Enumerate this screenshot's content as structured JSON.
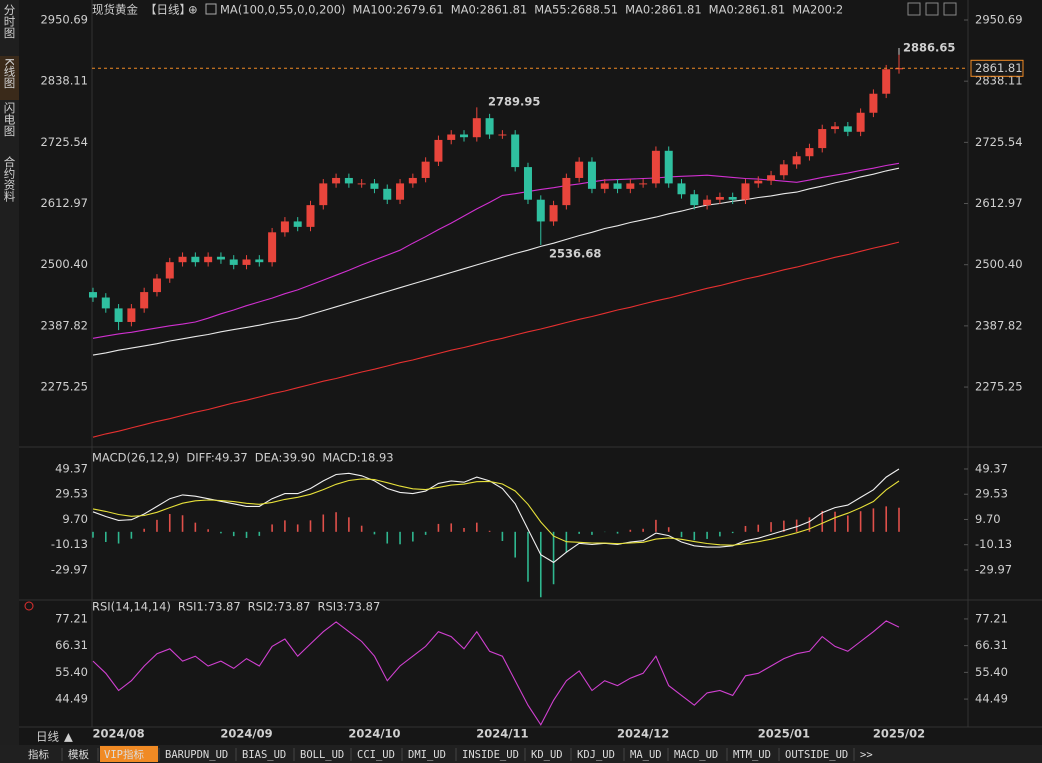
{
  "sidebar": [
    "分时图",
    "K线图",
    "闪电图",
    "合约资料"
  ],
  "header": {
    "title_items": [
      {
        "text": "现货黄金",
        "color": "#e6e6e6"
      },
      {
        "text": "【日线】",
        "color": "#f08a24"
      }
    ],
    "ma_items": [
      {
        "text": "MA(100,0,55,0,0,200)",
        "color": "#e6e6e6"
      },
      {
        "text": "MA100:2679.61",
        "color": "#e6e6e6"
      },
      {
        "text": "MA0:2861.81",
        "color": "#e8d83a"
      },
      {
        "text": "MA55:2688.51",
        "color": "#d040d0"
      },
      {
        "text": "MA0:2861.81",
        "color": "#30c040"
      },
      {
        "text": "MA0:2861.81",
        "color": "#9a9a9a"
      },
      {
        "text": "MA200:2",
        "color": "#e03030"
      }
    ]
  },
  "annotations": {
    "high_recent": "2886.65",
    "high_prior": "2789.95",
    "low_prior": "2536.68"
  },
  "bottom_bar": {
    "timeframe": "日线",
    "tabs": [
      "指标",
      "模板",
      "VIP指标",
      "BARUPDN_UD",
      "BIAS_UD",
      "BOLL_UD",
      "CCI_UD",
      "DMI_UD",
      "INSIDE_UD",
      "KD_UD",
      "KDJ_UD",
      "MA_UD",
      "MACD_UD",
      "MTM_UD",
      "OUTSIDE_UD",
      ">>"
    ],
    "active_tab": 2
  },
  "chart_data": [
    {
      "type": "candlestick",
      "categories": [
        null,
        null,
        "2024/08",
        null,
        null,
        null,
        null,
        null,
        null,
        null,
        null,
        null,
        "2024/09",
        null,
        null,
        null,
        null,
        null,
        null,
        null,
        null,
        null,
        "2024/10",
        null,
        null,
        null,
        null,
        null,
        null,
        null,
        null,
        null,
        "2024/11",
        null,
        null,
        null,
        null,
        null,
        null,
        null,
        null,
        null,
        null,
        "2024/12",
        null,
        null,
        null,
        null,
        null,
        null,
        null,
        null,
        null,
        null,
        "2025/01",
        null,
        null,
        null,
        null,
        null,
        null,
        null,
        null,
        "2025/02"
      ],
      "open": [
        2450,
        2440,
        2420,
        2395,
        2420,
        2450,
        2475,
        2505,
        2515,
        2505,
        2515,
        2510,
        2500,
        2510,
        2505,
        2560,
        2580,
        2570,
        2610,
        2650,
        2660,
        2650,
        2650,
        2640,
        2620,
        2650,
        2660,
        2690,
        2730,
        2740,
        2735,
        2770,
        2740,
        2740,
        2680,
        2620,
        2580,
        2610,
        2660,
        2690,
        2640,
        2650,
        2640,
        2650,
        2650,
        2710,
        2650,
        2630,
        2610,
        2620,
        2625,
        2620,
        2650,
        2655,
        2665,
        2685,
        2700,
        2715,
        2750,
        2755,
        2745,
        2780,
        2815,
        2860
      ],
      "high": [
        2458,
        2448,
        2428,
        2428,
        2458,
        2483,
        2513,
        2523,
        2523,
        2523,
        2523,
        2518,
        2518,
        2518,
        2568,
        2588,
        2588,
        2618,
        2658,
        2668,
        2668,
        2658,
        2658,
        2648,
        2658,
        2668,
        2698,
        2738,
        2748,
        2748,
        2789.95,
        2778,
        2748,
        2748,
        2688,
        2628,
        2618,
        2668,
        2698,
        2698,
        2658,
        2658,
        2658,
        2658,
        2718,
        2718,
        2658,
        2638,
        2628,
        2633,
        2633,
        2658,
        2663,
        2673,
        2693,
        2708,
        2723,
        2758,
        2763,
        2763,
        2788,
        2823,
        2868,
        2886.65
      ],
      "low": [
        2432,
        2412,
        2380,
        2387,
        2412,
        2442,
        2467,
        2497,
        2497,
        2497,
        2502,
        2492,
        2492,
        2497,
        2497,
        2552,
        2562,
        2562,
        2602,
        2642,
        2642,
        2642,
        2632,
        2612,
        2612,
        2642,
        2652,
        2682,
        2722,
        2727,
        2727,
        2732,
        2732,
        2672,
        2612,
        2536.68,
        2572,
        2602,
        2652,
        2632,
        2632,
        2632,
        2632,
        2642,
        2642,
        2642,
        2622,
        2602,
        2602,
        2612,
        2612,
        2612,
        2642,
        2647,
        2657,
        2677,
        2692,
        2707,
        2742,
        2737,
        2737,
        2772,
        2807,
        2852
      ],
      "close": [
        2440,
        2420,
        2395,
        2420,
        2450,
        2475,
        2505,
        2515,
        2505,
        2515,
        2510,
        2500,
        2510,
        2505,
        2560,
        2580,
        2570,
        2610,
        2650,
        2660,
        2650,
        2650,
        2640,
        2620,
        2650,
        2660,
        2690,
        2730,
        2740,
        2735,
        2770,
        2740,
        2740,
        2680,
        2620,
        2580,
        2610,
        2660,
        2690,
        2640,
        2650,
        2640,
        2650,
        2650,
        2710,
        2650,
        2630,
        2610,
        2620,
        2625,
        2620,
        2650,
        2655,
        2665,
        2685,
        2700,
        2715,
        2750,
        2755,
        2745,
        2780,
        2815,
        2860,
        2862
      ],
      "up_color": "#e8453c",
      "down_color": "#2fc0a0",
      "series": [
        {
          "color": "#e8e8e8",
          "values": [
            2334,
            2338,
            2343,
            2347,
            2351,
            2355,
            2360,
            2364,
            2368,
            2372,
            2377,
            2381,
            2385,
            2389,
            2394,
            2398,
            2402,
            2409,
            2416,
            2423,
            2430,
            2437,
            2444,
            2451,
            2458,
            2465,
            2472,
            2479,
            2486,
            2493,
            2500,
            2507,
            2514,
            2521,
            2527,
            2534,
            2540,
            2547,
            2554,
            2560,
            2567,
            2572,
            2578,
            2583,
            2588,
            2594,
            2599,
            2605,
            2610,
            2613,
            2617,
            2620,
            2624,
            2627,
            2631,
            2634,
            2640,
            2645,
            2651,
            2656,
            2662,
            2667,
            2673,
            2678
          ]
        },
        {
          "color": "#d030d0",
          "values": [
            2365,
            2369,
            2373,
            2376,
            2380,
            2384,
            2388,
            2391,
            2395,
            2402,
            2410,
            2417,
            2425,
            2432,
            2439,
            2447,
            2454,
            2463,
            2472,
            2481,
            2490,
            2500,
            2509,
            2518,
            2527,
            2540,
            2552,
            2565,
            2577,
            2590,
            2603,
            2615,
            2628,
            2631,
            2635,
            2639,
            2642,
            2646,
            2649,
            2653,
            2656,
            2657,
            2658,
            2659,
            2660,
            2662,
            2663,
            2664,
            2665,
            2663,
            2661,
            2659,
            2658,
            2656,
            2654,
            2652,
            2656,
            2661,
            2665,
            2669,
            2674,
            2678,
            2683,
            2687
          ]
        },
        {
          "color": "#e53030",
          "values": [
            2183,
            2189,
            2194,
            2200,
            2206,
            2212,
            2217,
            2223,
            2229,
            2234,
            2240,
            2246,
            2251,
            2257,
            2263,
            2268,
            2274,
            2280,
            2286,
            2291,
            2297,
            2303,
            2308,
            2314,
            2320,
            2325,
            2331,
            2337,
            2343,
            2348,
            2354,
            2360,
            2365,
            2371,
            2377,
            2382,
            2388,
            2394,
            2400,
            2405,
            2411,
            2417,
            2422,
            2428,
            2434,
            2439,
            2445,
            2451,
            2457,
            2462,
            2468,
            2474,
            2479,
            2485,
            2491,
            2496,
            2502,
            2508,
            2514,
            2519,
            2525,
            2531,
            2536,
            2542
          ]
        }
      ],
      "last_price": {
        "value": 2861.81,
        "label": "2861.81"
      },
      "last_price_color": "#f08a24",
      "ylim": [
        2168.6,
        2950.69
      ],
      "yticks": [
        2950.69,
        2838.11,
        2725.54,
        2612.97,
        {
          "value": 2500.4,
          "label": "2500.40"
        },
        2387.82,
        2275.25
      ]
    },
    {
      "type": "macd",
      "legend": [
        {
          "text": "MACD(26,12,9)",
          "color": "#e6e6e6"
        },
        {
          "text": "DIFF:49.37",
          "color": "#e6e6e6"
        },
        {
          "text": "DEA:39.90",
          "color": "#e8d83a"
        },
        {
          "text": "MACD:18.93",
          "color": "#d040d0"
        }
      ],
      "series": [
        {
          "color": "#f0f0f0",
          "values": [
            15.7,
            12,
            9,
            9.5,
            14,
            20,
            26,
            29,
            28,
            26,
            24,
            22,
            20,
            20,
            26,
            30,
            30,
            34,
            40,
            45,
            46,
            44,
            40,
            34,
            31,
            30,
            32,
            38,
            40,
            39,
            43,
            40,
            34,
            22,
            2,
            -18,
            -24,
            -16,
            -9,
            -10,
            -9,
            -10,
            -8,
            -7,
            -1,
            -3,
            -8,
            -11,
            -12,
            -12,
            -11,
            -7,
            -5,
            -2,
            1,
            4,
            8,
            15,
            19,
            21,
            27,
            33,
            43,
            49.37
          ]
        },
        {
          "color": "#e6e03a",
          "values": [
            18,
            16,
            13.6,
            12.2,
            12.8,
            15.3,
            19,
            22.5,
            24.4,
            25,
            24.6,
            23.7,
            22.4,
            21.6,
            23.1,
            25.5,
            27.1,
            29.5,
            33.2,
            37.3,
            40.3,
            41.6,
            41,
            38.6,
            35.9,
            33.8,
            33.2,
            34.9,
            36.7,
            37.5,
            39.4,
            39.6,
            37.6,
            32.1,
            21.6,
            7.7,
            -3.4,
            -7.8,
            -8.2,
            -8.8,
            -8.9,
            -9.3,
            -8.8,
            -8.2,
            -5.7,
            -4.8,
            -5.9,
            -7.7,
            -9.2,
            -10.2,
            -10.5,
            -9.3,
            -7.8,
            -5.8,
            -3.4,
            -0.8,
            2.3,
            6.8,
            11.1,
            14.6,
            18.9,
            23.8,
            33,
            39.9
          ]
        }
      ],
      "histogram": {
        "up_color": "#e0504a",
        "down_color": "#2fb890",
        "values": [
          -4.6,
          -8,
          -9.2,
          -5.4,
          2.4,
          9.4,
          14,
          13,
          7.2,
          2,
          -1.2,
          -3.4,
          -4.8,
          -3.2,
          5.8,
          9,
          5.8,
          9,
          13.6,
          15.4,
          11.4,
          4.8,
          -2,
          -9.2,
          -9.8,
          -7.6,
          -2.4,
          6.2,
          6.6,
          3,
          7.2,
          0.8,
          -7.2,
          -20.2,
          -39.2,
          -51.4,
          -41.2,
          -16.4,
          -1.6,
          -2.4,
          -0.2,
          -1.4,
          1.6,
          2.4,
          9.4,
          3.6,
          -4.2,
          -6.6,
          -5.6,
          -3.6,
          -1,
          4.6,
          5.6,
          7.6,
          8.8,
          9.6,
          11.4,
          16.4,
          15.8,
          12.8,
          16.2,
          18.4,
          20,
          18.93
        ]
      },
      "ylim": [
        -52,
        60.35
      ],
      "yticks": [
        49.37,
        29.53,
        {
          "value": 9.7,
          "label": "9.70"
        },
        -10.13,
        -29.97
      ]
    },
    {
      "type": "line",
      "legend": [
        {
          "text": "RSI(14,14,14)",
          "color": "#e6e6e6"
        },
        {
          "text": "RSI1:73.87",
          "color": "#e6e6e6"
        },
        {
          "text": "RSI2:73.87",
          "color": "#e8d83a"
        },
        {
          "text": "RSI3:73.87",
          "color": "#d040d0"
        }
      ],
      "series": [
        {
          "color": "#d040d0",
          "values": [
            60,
            55,
            48,
            52,
            58,
            63,
            65,
            60,
            62,
            58,
            60,
            57,
            61,
            58,
            66,
            69,
            62,
            67,
            72,
            76,
            72,
            68,
            62,
            52,
            58,
            62,
            66,
            72,
            70,
            65,
            72,
            64,
            62,
            52,
            42,
            34,
            44,
            52,
            56,
            48,
            52,
            50,
            53,
            55,
            62,
            50,
            46,
            42,
            47,
            48,
            46,
            54,
            55,
            58,
            61,
            63,
            64,
            70,
            66,
            64,
            68,
            72,
            76.4,
            73.87
          ]
        }
      ],
      "ylim": [
        33.5,
        82.9
      ],
      "yticks": [
        77.21,
        66.31,
        {
          "value": 55.4,
          "label": "55.40"
        },
        44.49
      ]
    }
  ]
}
